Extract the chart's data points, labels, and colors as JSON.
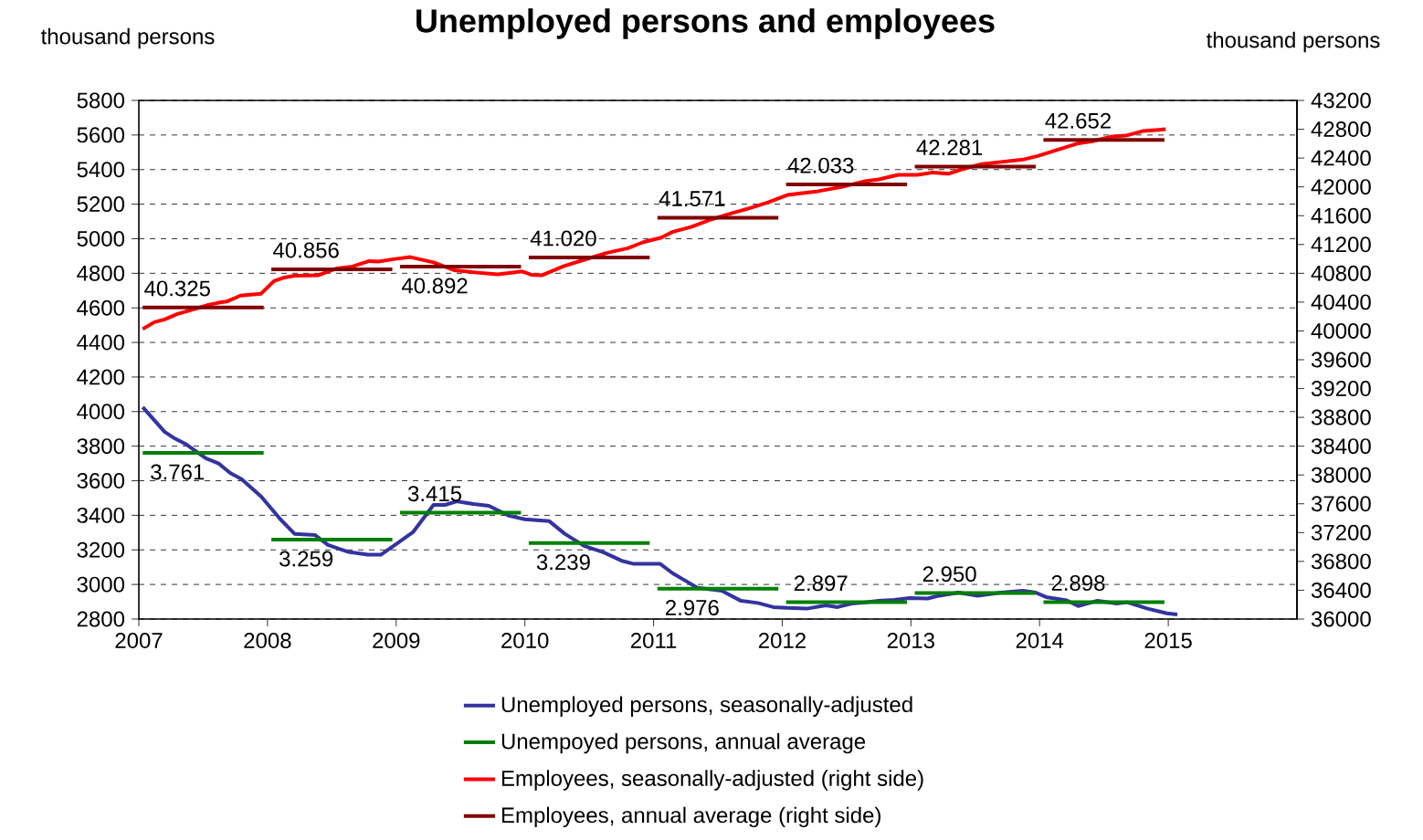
{
  "chart_data": {
    "type": "line",
    "title": "Unemployed persons and employees",
    "ylabel": "thousand persons",
    "y2label": "thousand persons",
    "xlim": [
      2007,
      2016
    ],
    "xticks": [
      2007,
      2008,
      2009,
      2010,
      2011,
      2012,
      2013,
      2014,
      2015
    ],
    "ylim": [
      2800,
      5800
    ],
    "yticks": [
      2800,
      3000,
      3200,
      3400,
      3600,
      3800,
      4000,
      4200,
      4400,
      4600,
      4800,
      5000,
      5200,
      5400,
      5600,
      5800
    ],
    "y2lim": [
      36000,
      43200
    ],
    "y2ticks": [
      36000,
      36400,
      36800,
      37200,
      37600,
      38000,
      38400,
      38800,
      39200,
      39600,
      40000,
      40400,
      40800,
      41200,
      41600,
      42000,
      42400,
      42800,
      43200
    ],
    "grid": "y",
    "legend": "bottom",
    "series": [
      {
        "name": "Unemployed persons, seasonally-adjusted",
        "type": "line",
        "color": "#3333a0",
        "axis": "y",
        "x": [
          2007.03,
          2007.2,
          2007.28,
          2007.37,
          2007.52,
          2007.62,
          2007.71,
          2007.8,
          2007.95,
          2008.1,
          2008.21,
          2008.37,
          2008.47,
          2008.63,
          2008.78,
          2008.88,
          2009.0,
          2009.13,
          2009.29,
          2009.38,
          2009.47,
          2009.6,
          2009.72,
          2009.87,
          2010.0,
          2010.19,
          2010.31,
          2010.46,
          2010.61,
          2010.76,
          2010.84,
          2011.05,
          2011.15,
          2011.24,
          2011.34,
          2011.53,
          2011.57,
          2011.68,
          2011.81,
          2011.93,
          2012.04,
          2012.19,
          2012.34,
          2012.43,
          2012.54,
          2012.63,
          2012.75,
          2012.87,
          2012.99,
          2013.13,
          2013.22,
          2013.37,
          2013.52,
          2013.7,
          2013.87,
          2013.97,
          2014.05,
          2014.21,
          2014.3,
          2014.45,
          2014.6,
          2014.68,
          2014.84,
          2014.99,
          2015.07
        ],
        "values": [
          4026,
          3883,
          3844,
          3810,
          3730,
          3700,
          3645,
          3608,
          3509,
          3377,
          3293,
          3286,
          3228,
          3188,
          3172,
          3172,
          3234,
          3302,
          3460,
          3460,
          3481,
          3465,
          3455,
          3399,
          3377,
          3366,
          3293,
          3223,
          3186,
          3135,
          3120,
          3120,
          3064,
          3025,
          2981,
          2964,
          2948,
          2905,
          2893,
          2869,
          2864,
          2860,
          2879,
          2869,
          2890,
          2895,
          2906,
          2911,
          2921,
          2919,
          2935,
          2953,
          2935,
          2953,
          2964,
          2953,
          2927,
          2908,
          2875,
          2906,
          2890,
          2897,
          2860,
          2833,
          2826
        ]
      },
      {
        "name": "Unempoyed persons, annual average",
        "type": "line",
        "color": "#008000",
        "axis": "y",
        "x": [
          2007.03,
          2007.97,
          2007.99,
          2008.03,
          2008.97,
          2008.99,
          2009.03,
          2009.97,
          2009.99,
          2010.03,
          2010.97,
          2010.99,
          2011.03,
          2011.97,
          2011.99,
          2012.03,
          2012.97,
          2012.99,
          2013.03,
          2013.97,
          2013.99,
          2014.03,
          2014.97
        ],
        "values": [
          3761,
          3761,
          null,
          3259,
          3259,
          null,
          3415,
          3415,
          null,
          3239,
          3239,
          null,
          2976,
          2976,
          null,
          2897,
          2897,
          null,
          2950,
          2950,
          null,
          2898,
          2898
        ],
        "value_labels": [
          "3.761",
          null,
          null,
          "3.259",
          null,
          null,
          "3.415",
          null,
          null,
          "3.239",
          null,
          null,
          "2.976",
          null,
          null,
          "2.897",
          null,
          null,
          "2.950",
          null,
          null,
          "2.898",
          null
        ]
      },
      {
        "name": "Employees, seasonally-adjusted (right side)",
        "type": "line",
        "color": "#ff0000",
        "axis": "y2",
        "x": [
          2007.03,
          2007.12,
          2007.2,
          2007.3,
          2007.4,
          2007.54,
          2007.62,
          2007.69,
          2007.79,
          2007.95,
          2008.05,
          2008.13,
          2008.21,
          2008.39,
          2008.54,
          2008.66,
          2008.79,
          2008.86,
          2008.98,
          2009.11,
          2009.29,
          2009.45,
          2009.63,
          2009.79,
          2009.98,
          2010.05,
          2010.13,
          2010.3,
          2010.46,
          2010.64,
          2010.8,
          2010.92,
          2011.06,
          2011.15,
          2011.29,
          2011.45,
          2011.6,
          2011.75,
          2011.89,
          2012.04,
          2012.28,
          2012.46,
          2012.63,
          2012.75,
          2012.9,
          2013.05,
          2013.17,
          2013.29,
          2013.4,
          2013.55,
          2013.7,
          2013.87,
          2013.99,
          2014.11,
          2014.29,
          2014.41,
          2014.55,
          2014.67,
          2014.8,
          2014.98
        ],
        "values": [
          40026,
          40121,
          40159,
          40235,
          40286,
          40362,
          40391,
          40412,
          40491,
          40517,
          40691,
          40741,
          40767,
          40771,
          40868,
          40894,
          40970,
          40962,
          40996,
          41025,
          40951,
          40843,
          40809,
          40784,
          40825,
          40780,
          40771,
          40898,
          40988,
          41085,
          41148,
          41232,
          41295,
          41376,
          41443,
          41549,
          41630,
          41706,
          41786,
          41887,
          41940,
          41998,
          42074,
          42103,
          42166,
          42166,
          42200,
          42182,
          42246,
          42315,
          42346,
          42378,
          42431,
          42499,
          42600,
          42632,
          42695,
          42711,
          42774,
          42800
        ]
      },
      {
        "name": "Employees, annual average (right side)",
        "type": "line",
        "color": "#800000",
        "axis": "y2",
        "x": [
          2007.03,
          2007.97,
          2007.99,
          2008.03,
          2008.97,
          2008.99,
          2009.03,
          2009.97,
          2009.99,
          2010.03,
          2010.97,
          2010.99,
          2011.03,
          2011.97,
          2011.99,
          2012.03,
          2012.97,
          2012.99,
          2013.03,
          2013.97,
          2013.99,
          2014.03,
          2014.97
        ],
        "values": [
          40325,
          40325,
          null,
          40856,
          40856,
          null,
          40892,
          40892,
          null,
          41020,
          41020,
          null,
          41571,
          41571,
          null,
          42033,
          42033,
          null,
          42281,
          42281,
          null,
          42652,
          42652
        ],
        "value_labels": [
          "40.325",
          null,
          null,
          "40.856",
          null,
          null,
          "40.892",
          null,
          null,
          "41.020",
          null,
          null,
          "41.571",
          null,
          null,
          "42.033",
          null,
          null,
          "42.281",
          null,
          null,
          "42.652",
          null
        ]
      }
    ]
  }
}
